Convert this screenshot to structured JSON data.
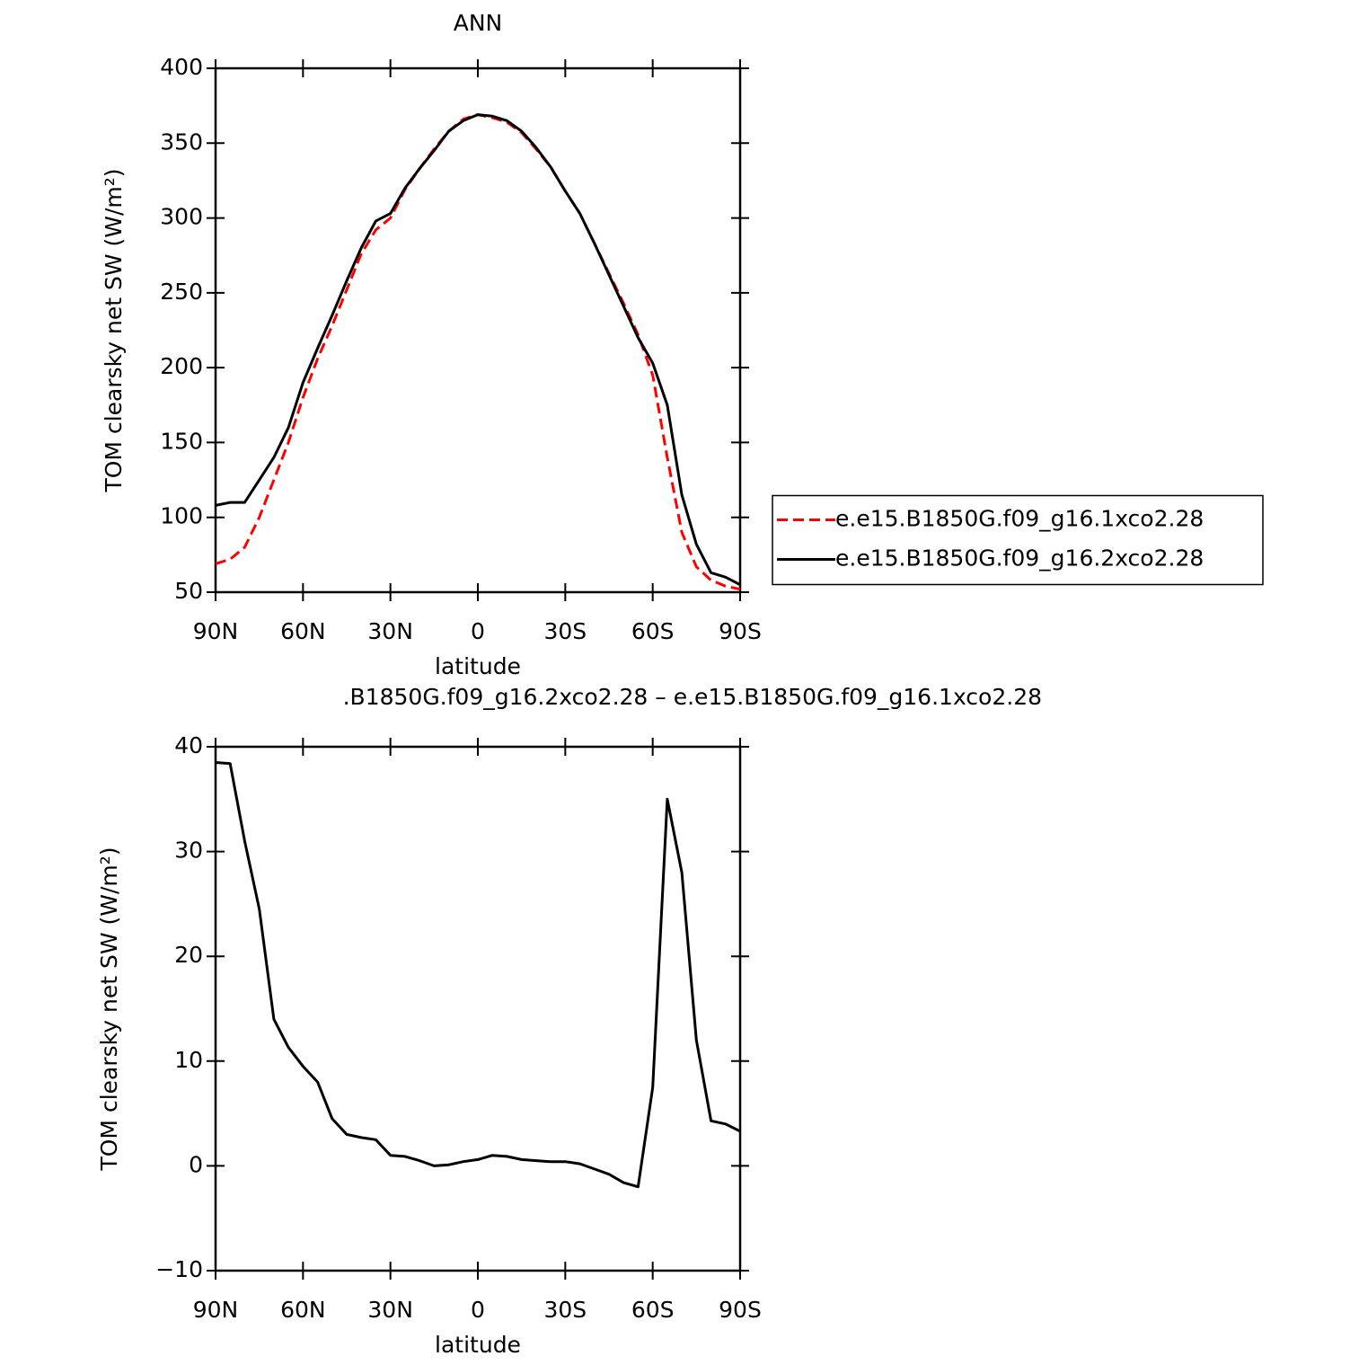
{
  "chart_data": [
    {
      "type": "line",
      "title": "ANN",
      "x_label": "latitude",
      "y_label": "TOM clearsky net SW (W/m²)",
      "x": [
        90,
        85,
        80,
        75,
        70,
        65,
        60,
        55,
        50,
        45,
        40,
        35,
        30,
        25,
        20,
        15,
        10,
        5,
        0,
        -5,
        -10,
        -15,
        -20,
        -25,
        -30,
        -35,
        -40,
        -45,
        -50,
        -55,
        -60,
        -65,
        -70,
        -75,
        -80,
        -85,
        -90
      ],
      "series": [
        {
          "name": "e.e15.B1850G.f09_g16.1xco2.28",
          "color": "#ff0000",
          "dashed": true,
          "values": [
            69,
            72,
            80,
            100,
            125,
            150,
            180,
            206,
            228,
            252,
            276,
            292,
            300,
            319,
            333,
            346,
            358,
            366,
            369,
            367,
            364,
            357,
            346,
            334,
            318,
            303,
            283,
            263,
            243,
            222,
            195,
            140,
            90,
            67,
            58,
            54,
            52
          ]
        },
        {
          "name": "e.e15.B1850G.f09_g16.2xco2.28",
          "color": "#000000",
          "dashed": false,
          "values": [
            108,
            110,
            110,
            125,
            140,
            160,
            190,
            213,
            235,
            258,
            280,
            298,
            303,
            320,
            333,
            345,
            358,
            365,
            369,
            368,
            365,
            358,
            347,
            334,
            318,
            303,
            283,
            262,
            241,
            220,
            203,
            175,
            115,
            82,
            63,
            60,
            55
          ]
        }
      ],
      "xlim": [
        90,
        -90
      ],
      "xticks": [
        {
          "value": 90,
          "label": "90N"
        },
        {
          "value": 60,
          "label": "60N"
        },
        {
          "value": 30,
          "label": "30N"
        },
        0,
        {
          "value": -30,
          "label": "30S"
        },
        {
          "value": -60,
          "label": "60S"
        },
        {
          "value": -90,
          "label": "90S"
        }
      ],
      "ylim": [
        50,
        400
      ],
      "yticks": [
        50,
        100,
        150,
        200,
        250,
        300,
        350,
        400
      ],
      "legend": "right"
    },
    {
      "type": "line",
      "title": ".B1850G.f09_g16.2xco2.28 – e.e15.B1850G.f09_g16.1xco2.28",
      "x_label": "latitude",
      "y_label": "TOM clearsky net SW (W/m²)",
      "x": [
        90,
        85,
        80,
        75,
        70,
        65,
        60,
        55,
        50,
        45,
        40,
        35,
        30,
        25,
        20,
        15,
        10,
        5,
        0,
        -5,
        -10,
        -15,
        -20,
        -25,
        -30,
        -35,
        -40,
        -45,
        -50,
        -55,
        -60,
        -65,
        -70,
        -75,
        -80,
        -85,
        -90
      ],
      "values": [
        38.5,
        38.4,
        31,
        24.5,
        14,
        11.3,
        9.5,
        8,
        4.5,
        3,
        2.7,
        2.5,
        1,
        0.9,
        0.5,
        0,
        0.1,
        0.4,
        0.6,
        1.0,
        0.9,
        0.6,
        0.5,
        0.4,
        0.4,
        0.2,
        -0.3,
        -0.8,
        -1.6,
        -2.0,
        7.5,
        35,
        28,
        12,
        4.3,
        4,
        3.3
      ],
      "color": "#000000",
      "xlim": [
        90,
        -90
      ],
      "xticks": [
        {
          "value": 90,
          "label": "90N"
        },
        {
          "value": 60,
          "label": "60N"
        },
        {
          "value": 30,
          "label": "30N"
        },
        0,
        {
          "value": -30,
          "label": "30S"
        },
        {
          "value": -60,
          "label": "60S"
        },
        {
          "value": -90,
          "label": "90S"
        }
      ],
      "ylim": [
        -10,
        40
      ],
      "yticks": [
        {
          "value": -10,
          "label": "−10"
        },
        0,
        10,
        20,
        30,
        40
      ]
    }
  ]
}
